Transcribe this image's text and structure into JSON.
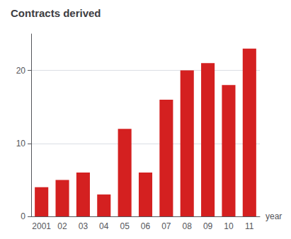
{
  "chart_data": {
    "type": "bar",
    "title": "Contracts derived",
    "xlabel": "year",
    "categories": [
      "2001",
      "02",
      "03",
      "04",
      "05",
      "06",
      "07",
      "08",
      "09",
      "10",
      "11"
    ],
    "values": [
      4,
      5,
      6,
      3,
      12,
      6,
      16,
      20,
      21,
      18,
      23
    ],
    "color": "#d42020",
    "ylim": [
      0,
      25
    ],
    "yticks": [
      0,
      10,
      20
    ],
    "grid": true
  }
}
